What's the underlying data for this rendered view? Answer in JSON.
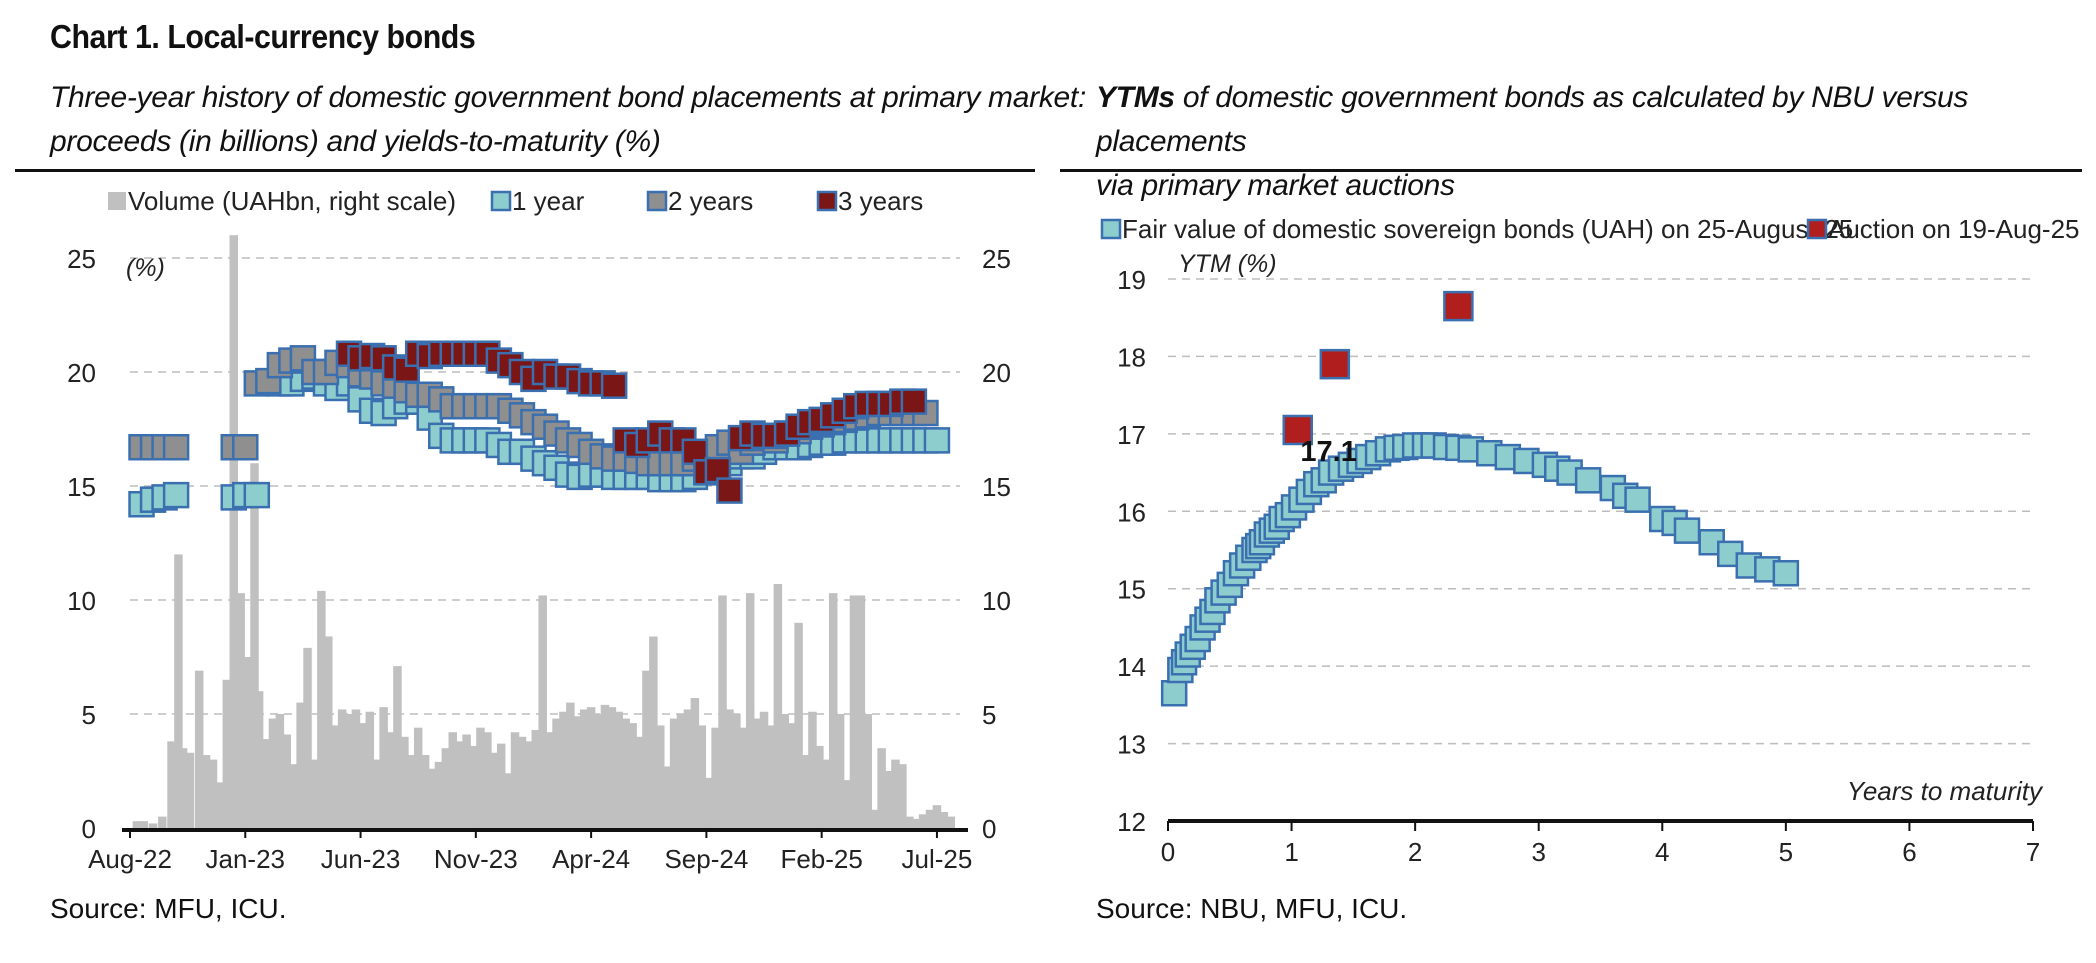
{
  "header": {
    "title": "Chart 1. Local-currency bonds"
  },
  "left_panel": {
    "subtitle_line1": "Three-year history of domestic government bond placements at primary market:",
    "subtitle_line2": "proceeds (in billions) and yields-to-maturity (%)",
    "source": "Source: MFU, ICU."
  },
  "right_panel": {
    "subtitle_bold": "YTMs",
    "subtitle_line1_rest": " of domestic government bonds as calculated by NBU versus placements",
    "subtitle_line2": "via primary market auctions",
    "source": "Source: NBU, MFU, ICU."
  },
  "colors": {
    "volume": "#c0c0c0",
    "one_year": "#8ecdcd",
    "two_years": "#8f8f8f",
    "three_years": "#7a1616",
    "marker_edge": "#3a6fb0",
    "fair_value": "#8ecdcd",
    "auction": "#b01e1e",
    "grid": "#bdbdbd"
  },
  "chart_data": [
    {
      "type": "bar+scatter",
      "title": "",
      "left_axis_label": "(%)",
      "ylim_left": [
        0,
        25
      ],
      "ylim_right": [
        0,
        25
      ],
      "yticks_left": [
        "25",
        "20",
        "15",
        "10",
        "5",
        "0"
      ],
      "yticks_right": [
        "25",
        "20",
        "15",
        "10",
        "5",
        "0"
      ],
      "xticks": [
        "Aug-22",
        "Jan-23",
        "Jun-23",
        "Nov-23",
        "Apr-24",
        "Sep-24",
        "Feb-25",
        "Jul-25"
      ],
      "legend": [
        "Volume (UAHbn, right scale)",
        "1 year",
        "2 years",
        "3 years"
      ],
      "legend_position": "top",
      "grid": "horizontal dashed",
      "volume_series": {
        "name": "Volume (UAHbn, right scale)",
        "t_month": [
          0.3,
          0.6,
          1.0,
          1.4,
          1.8,
          2.1,
          2.3,
          2.6,
          3.0,
          3.3,
          3.6,
          3.9,
          4.2,
          4.5,
          4.8,
          5.1,
          5.4,
          5.6,
          5.9,
          6.2,
          6.5,
          6.8,
          7.1,
          7.4,
          7.7,
          8.0,
          8.3,
          8.6,
          8.9,
          9.2,
          9.5,
          9.8,
          10.1,
          10.4,
          10.7,
          11.0,
          11.3,
          11.6,
          11.9,
          12.2,
          12.5,
          12.8,
          13.1,
          13.4,
          13.7,
          14.0,
          14.3,
          14.6,
          14.9,
          15.2,
          15.5,
          15.8,
          16.1,
          16.4,
          16.7,
          17.0,
          17.3,
          17.6,
          17.9,
          18.2,
          18.5,
          18.8,
          19.1,
          19.4,
          19.7,
          20.0,
          20.3,
          20.6,
          20.9,
          21.2,
          21.5,
          21.8,
          22.1,
          22.4,
          22.7,
          23.0,
          23.3,
          23.6,
          23.9,
          24.2,
          24.5,
          24.8,
          25.1,
          25.4,
          25.7,
          26.0,
          26.3,
          26.6,
          26.9,
          27.2,
          27.5,
          27.8,
          28.1,
          28.4,
          28.7,
          29.0,
          29.3,
          29.6,
          29.9,
          30.2,
          30.5,
          30.8,
          31.1,
          31.4,
          31.7,
          32.0,
          32.3,
          32.6,
          32.9,
          33.2,
          33.5,
          33.8,
          34.1,
          34.4,
          34.7,
          35.0,
          35.3,
          35.6
        ],
        "values": [
          0.3,
          0.3,
          0.2,
          0.5,
          3.8,
          12.0,
          3.5,
          3.3,
          6.9,
          3.2,
          3.0,
          2.0,
          6.5,
          26.0,
          10.3,
          7.5,
          16.0,
          6.0,
          3.9,
          4.8,
          5.0,
          4.1,
          2.8,
          5.5,
          7.9,
          3.0,
          10.4,
          8.4,
          4.5,
          5.2,
          5.0,
          5.2,
          4.6,
          5.1,
          3.0,
          5.3,
          4.2,
          7.1,
          4.0,
          3.2,
          4.4,
          3.2,
          2.6,
          2.9,
          3.5,
          4.2,
          3.8,
          4.1,
          3.6,
          4.4,
          4.2,
          3.3,
          3.7,
          2.4,
          4.2,
          4.0,
          3.8,
          4.3,
          10.2,
          4.2,
          4.8,
          5.1,
          5.5,
          4.9,
          5.2,
          5.3,
          5.0,
          5.4,
          5.3,
          5.1,
          4.8,
          4.6,
          4.0,
          6.9,
          8.4,
          4.5,
          2.7,
          4.8,
          5.0,
          5.2,
          5.7,
          4.5,
          2.2,
          4.4,
          10.2,
          5.2,
          5.0,
          4.4,
          10.3,
          4.8,
          5.1,
          4.5,
          10.7,
          5.0,
          4.6,
          9.0,
          3.2,
          5.1,
          3.6,
          3.0,
          10.3,
          5.0,
          2.1,
          10.2,
          10.2,
          5.0,
          0.8,
          3.5,
          2.5,
          3.0,
          2.8,
          0.5,
          0.4,
          0.6,
          0.8,
          1.0,
          0.7,
          0.5
        ]
      },
      "yield_series": [
        {
          "name": "1 year",
          "t_month": [
            0.5,
            1.0,
            1.5,
            2.0,
            4.5,
            5.0,
            5.5,
            6.5,
            7.0,
            7.5,
            8.0,
            8.5,
            9.0,
            9.5,
            10.0,
            10.5,
            11.0,
            11.5,
            12.0,
            12.5,
            13.0,
            13.5,
            14.0,
            14.5,
            15.0,
            15.5,
            16.0,
            16.5,
            17.0,
            17.5,
            18.0,
            18.5,
            19.0,
            19.5,
            20.0,
            20.5,
            21.0,
            21.5,
            22.0,
            22.5,
            23.0,
            23.5,
            24.0,
            24.5,
            25.0,
            25.5,
            26.0,
            26.5,
            27.0,
            27.5,
            28.0,
            28.5,
            29.0,
            29.5,
            30.0,
            30.5,
            31.0,
            31.5,
            32.0,
            32.5,
            33.0,
            33.5,
            34.0,
            34.5,
            35.0
          ],
          "values": [
            14.2,
            14.4,
            14.5,
            14.6,
            14.5,
            14.6,
            14.6,
            19.5,
            19.5,
            19.7,
            19.8,
            19.5,
            19.3,
            19.5,
            18.8,
            18.3,
            18.2,
            18.5,
            18.7,
            18.7,
            18.0,
            17.2,
            17.0,
            17.0,
            17.0,
            17.0,
            16.8,
            16.5,
            16.5,
            16.2,
            16.0,
            15.8,
            15.5,
            15.4,
            15.5,
            15.5,
            15.4,
            15.4,
            15.4,
            15.4,
            15.3,
            15.3,
            15.3,
            15.4,
            15.6,
            15.7,
            16.0,
            16.3,
            16.3,
            16.5,
            16.7,
            16.7,
            16.7,
            16.8,
            16.9,
            16.9,
            17.0,
            17.0,
            17.0,
            17.0,
            17.0,
            17.0,
            17.0,
            17.0,
            17.0
          ]
        },
        {
          "name": "2 years",
          "t_month": [
            0.5,
            1.0,
            1.5,
            2.0,
            4.5,
            5.0,
            5.5,
            6.0,
            6.5,
            7.0,
            7.5,
            8.0,
            8.5,
            9.0,
            9.5,
            10.0,
            10.5,
            11.0,
            11.5,
            12.0,
            12.5,
            13.0,
            13.5,
            14.0,
            14.5,
            15.0,
            15.5,
            16.0,
            16.5,
            17.0,
            17.5,
            18.0,
            18.5,
            19.0,
            19.5,
            20.0,
            20.5,
            21.0,
            21.5,
            22.0,
            22.5,
            23.0,
            23.5,
            24.0,
            24.5,
            25.0,
            25.5,
            26.0,
            26.5,
            27.0,
            27.5,
            28.0,
            28.5,
            29.0,
            29.5,
            30.0,
            30.5,
            31.0,
            31.5,
            32.0,
            32.5,
            33.0,
            33.5,
            34.0,
            34.5,
            35.0
          ],
          "values": [
            16.7,
            16.7,
            16.7,
            16.7,
            16.7,
            16.7,
            19.5,
            19.6,
            20.3,
            20.5,
            20.6,
            20.0,
            20.0,
            20.4,
            20.3,
            19.9,
            19.8,
            19.5,
            19.4,
            19.2,
            19.0,
            19.0,
            18.8,
            18.5,
            18.5,
            18.5,
            18.5,
            18.5,
            18.3,
            18.1,
            17.8,
            17.6,
            17.3,
            17.0,
            16.8,
            16.5,
            16.3,
            16.2,
            16.2,
            16.1,
            16.0,
            16.0,
            16.0,
            16.0,
            16.2,
            16.4,
            16.7,
            16.9,
            16.5,
            16.9,
            17.1,
            17.0,
            17.3,
            17.4,
            17.6,
            17.7,
            17.8,
            17.9,
            18.0,
            18.1,
            18.2,
            18.2,
            18.2,
            18.2,
            18.2
          ]
        },
        {
          "name": "3 years",
          "t_month": [
            9.5,
            10.0,
            10.5,
            11.0,
            11.5,
            12.0,
            12.5,
            13.0,
            13.5,
            14.0,
            14.5,
            15.0,
            15.5,
            16.0,
            16.5,
            17.0,
            17.5,
            18.0,
            18.5,
            19.0,
            19.5,
            20.0,
            20.5,
            21.0,
            21.5,
            22.0,
            22.5,
            23.0,
            23.5,
            24.0,
            24.5,
            25.0,
            25.5,
            26.0,
            26.5,
            27.0,
            27.5,
            28.0,
            28.5,
            29.0,
            29.5,
            30.0,
            30.5,
            31.0,
            31.5,
            32.0,
            32.5,
            33.0,
            33.5,
            34.0
          ],
          "values": [
            20.8,
            20.6,
            20.7,
            20.6,
            20.2,
            20.1,
            20.8,
            20.7,
            20.8,
            20.8,
            20.8,
            20.8,
            20.8,
            20.5,
            20.3,
            20.0,
            19.7,
            20.0,
            19.8,
            19.8,
            19.6,
            19.5,
            19.5,
            19.4,
            17.0,
            16.8,
            17.0,
            17.3,
            17.0,
            17.0,
            16.5,
            15.6,
            15.7,
            14.8,
            17.1,
            17.3,
            17.2,
            17.2,
            17.3,
            17.6,
            17.8,
            17.9,
            18.1,
            18.3,
            18.5,
            18.6,
            18.6,
            18.6,
            18.7,
            18.7
          ]
        }
      ]
    },
    {
      "type": "scatter",
      "title": "",
      "ylabel": "YTM (%)",
      "xlabel": "Years to maturity",
      "xlim": [
        0,
        7
      ],
      "ylim": [
        12,
        19
      ],
      "xticks": [
        "0",
        "1",
        "2",
        "3",
        "4",
        "5",
        "6",
        "7"
      ],
      "yticks": [
        "19",
        "18",
        "17",
        "16",
        "15",
        "14",
        "13",
        "12"
      ],
      "legend": [
        "Fair value of domestic sovereign bonds (UAH) on 25-August-25",
        "Auction on 19-Aug-25"
      ],
      "legend_position": "top",
      "grid": "horizontal dashed",
      "annotation": "17.1",
      "series": [
        {
          "name": "Fair value of domestic sovereign bonds (UAH) on 25-August-25",
          "x": [
            0.05,
            0.1,
            0.13,
            0.16,
            0.2,
            0.24,
            0.28,
            0.32,
            0.36,
            0.4,
            0.45,
            0.5,
            0.55,
            0.6,
            0.65,
            0.7,
            0.73,
            0.76,
            0.8,
            0.84,
            0.88,
            0.92,
            0.97,
            1.02,
            1.08,
            1.14,
            1.2,
            1.26,
            1.32,
            1.4,
            1.48,
            1.55,
            1.62,
            1.7,
            1.78,
            1.85,
            1.92,
            2.0,
            2.08,
            2.15,
            2.25,
            2.35,
            2.45,
            2.6,
            2.75,
            2.9,
            3.05,
            3.15,
            3.25,
            3.4,
            3.6,
            3.7,
            3.8,
            4.0,
            4.1,
            4.2,
            4.4,
            4.55,
            4.7,
            4.85,
            5.0
          ],
          "y": [
            13.65,
            13.95,
            14.05,
            14.15,
            14.25,
            14.35,
            14.5,
            14.6,
            14.7,
            14.85,
            14.95,
            15.05,
            15.2,
            15.3,
            15.4,
            15.5,
            15.55,
            15.6,
            15.7,
            15.75,
            15.8,
            15.9,
            15.95,
            16.05,
            16.15,
            16.25,
            16.35,
            16.4,
            16.5,
            16.55,
            16.6,
            16.65,
            16.7,
            16.75,
            16.8,
            16.82,
            16.83,
            16.85,
            16.85,
            16.85,
            16.83,
            16.82,
            16.8,
            16.75,
            16.7,
            16.65,
            16.6,
            16.55,
            16.5,
            16.4,
            16.3,
            16.2,
            16.15,
            15.9,
            15.85,
            15.75,
            15.6,
            15.45,
            15.3,
            15.25,
            15.2
          ]
        },
        {
          "name": "Auction on 19-Aug-25",
          "x": [
            1.05,
            1.35,
            2.35
          ],
          "y": [
            17.05,
            17.9,
            18.65
          ]
        }
      ]
    }
  ]
}
